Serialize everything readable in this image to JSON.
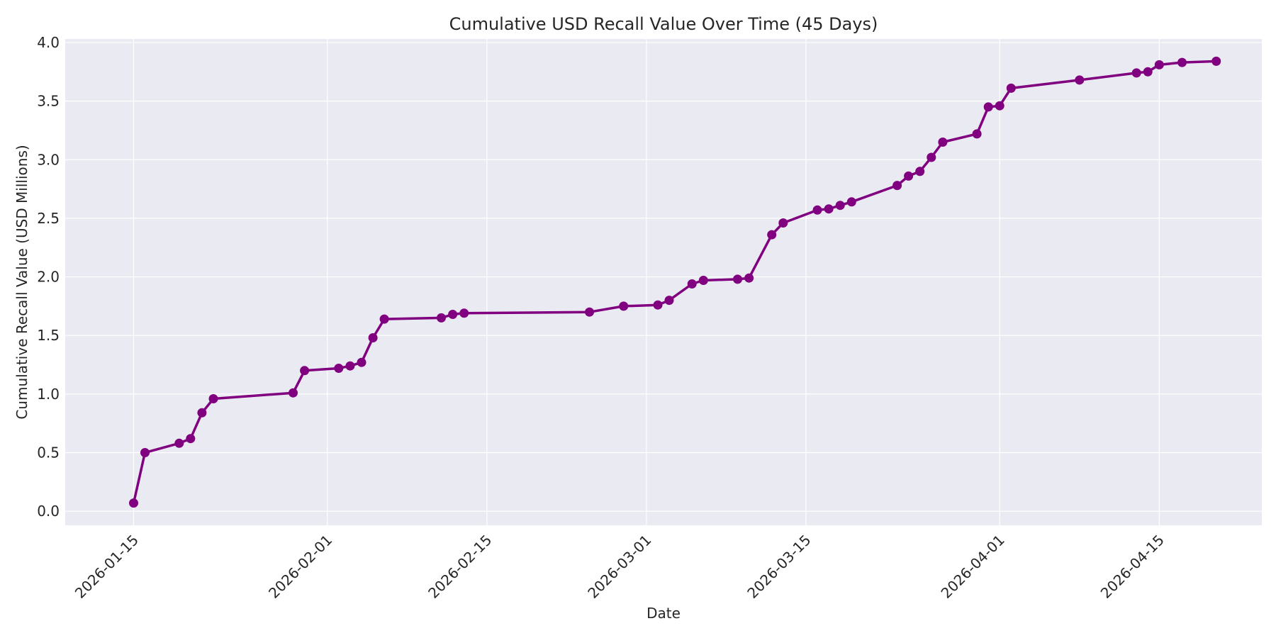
{
  "chart_data": {
    "type": "line",
    "title": "Cumulative USD Recall Value Over Time (45 Days)",
    "xlabel": "Date",
    "ylabel": "Cumulative Recall Value (USD Millions)",
    "ylim": [
      -0.12,
      4.03
    ],
    "xlim": [
      "2026-01-09",
      "2026-04-24"
    ],
    "x_ticks": [
      "2026-01-15",
      "2026-02-01",
      "2026-02-15",
      "2026-03-01",
      "2026-03-15",
      "2026-04-01",
      "2026-04-15"
    ],
    "y_ticks": [
      "0.0",
      "0.5",
      "1.0",
      "1.5",
      "2.0",
      "2.5",
      "3.0",
      "3.5",
      "4.0"
    ],
    "grid": true,
    "legend": "none",
    "series": [
      {
        "color": "#800080",
        "marker": "circle",
        "x": [
          "2026-01-15",
          "2026-01-16",
          "2026-01-19",
          "2026-01-20",
          "2026-01-21",
          "2026-01-22",
          "2026-01-29",
          "2026-01-30",
          "2026-02-02",
          "2026-02-03",
          "2026-02-04",
          "2026-02-05",
          "2026-02-06",
          "2026-02-11",
          "2026-02-12",
          "2026-02-13",
          "2026-02-24",
          "2026-02-27",
          "2026-03-02",
          "2026-03-03",
          "2026-03-05",
          "2026-03-06",
          "2026-03-09",
          "2026-03-10",
          "2026-03-12",
          "2026-03-13",
          "2026-03-16",
          "2026-03-17",
          "2026-03-18",
          "2026-03-19",
          "2026-03-23",
          "2026-03-24",
          "2026-03-25",
          "2026-03-26",
          "2026-03-27",
          "2026-03-30",
          "2026-03-31",
          "2026-04-01",
          "2026-04-02",
          "2026-04-08",
          "2026-04-13",
          "2026-04-14",
          "2026-04-15",
          "2026-04-17",
          "2026-04-20"
        ],
        "values": [
          0.07,
          0.5,
          0.58,
          0.62,
          0.84,
          0.96,
          1.01,
          1.2,
          1.22,
          1.24,
          1.27,
          1.48,
          1.64,
          1.65,
          1.68,
          1.69,
          1.7,
          1.75,
          1.76,
          1.8,
          1.94,
          1.97,
          1.98,
          1.99,
          2.36,
          2.46,
          2.57,
          2.58,
          2.61,
          2.64,
          2.78,
          2.86,
          2.9,
          3.02,
          3.15,
          3.22,
          3.45,
          3.46,
          3.61,
          3.68,
          3.74,
          3.75,
          3.81,
          3.83,
          3.84
        ]
      }
    ]
  }
}
